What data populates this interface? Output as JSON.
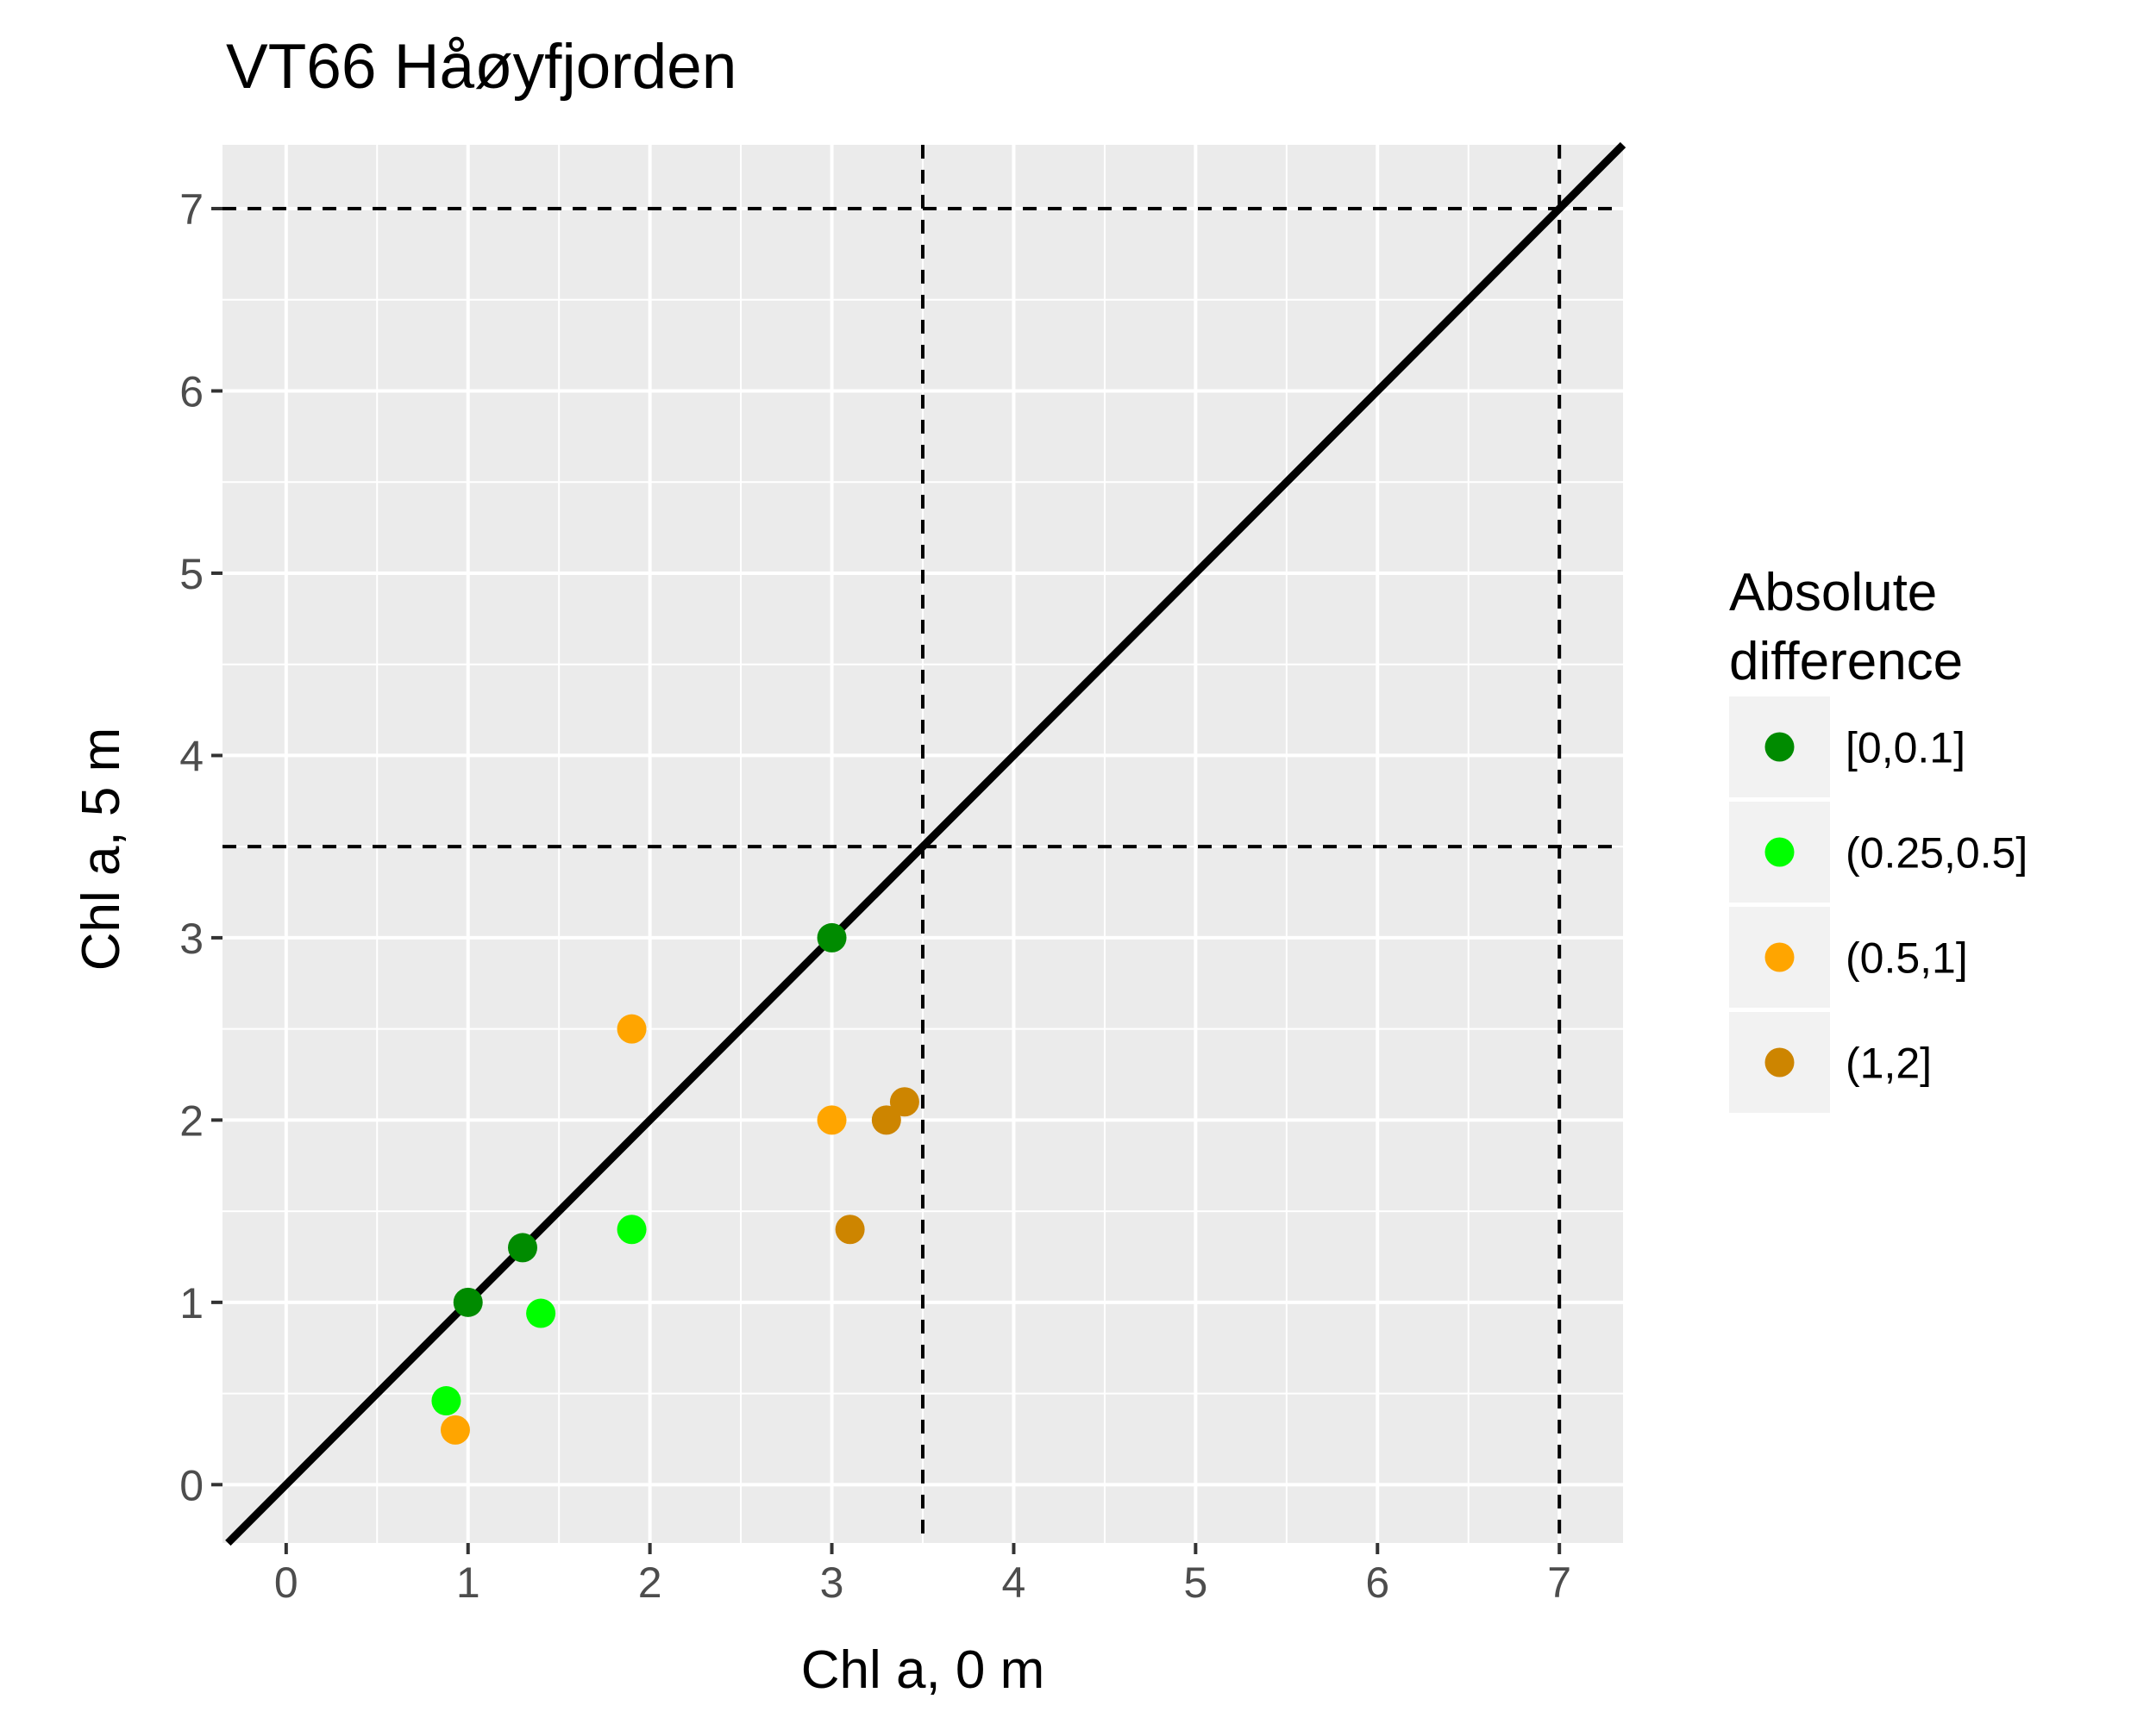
{
  "chart_data": {
    "type": "scatter",
    "title": "VT66 Håøyfjorden",
    "xlabel": "Chl a, 0 m",
    "ylabel": "Chl a, 5 m",
    "xlim": [
      -0.35,
      7.35
    ],
    "ylim": [
      -0.32,
      7.35
    ],
    "x_ticks": [
      "0",
      "1",
      "2",
      "3",
      "4",
      "5",
      "6",
      "7"
    ],
    "y_ticks": [
      "0",
      "1",
      "2",
      "3",
      "4",
      "5",
      "6",
      "7"
    ],
    "grid": true,
    "panel_background": "#ebebeb",
    "reference_lines": {
      "identity_line": "y = x",
      "vertical_dashed": [
        3.5,
        7
      ],
      "horizontal_dashed": [
        3.5,
        7
      ]
    },
    "legend": {
      "title": [
        "Absolute",
        "difference"
      ],
      "position": "right",
      "entries": [
        {
          "label": "[0,0.1]",
          "color": "#008b00"
        },
        {
          "label": "(0.25,0.5]",
          "color": "#00ff00"
        },
        {
          "label": "(0.5,1]",
          "color": "#ffa500"
        },
        {
          "label": "(1,2]",
          "color": "#cd8500"
        }
      ]
    },
    "series": [
      {
        "name": "[0,0.1]",
        "color": "#008b00",
        "points": [
          [
            1.0,
            1.0
          ],
          [
            1.3,
            1.3
          ],
          [
            3.0,
            3.0
          ]
        ]
      },
      {
        "name": "(0.25,0.5]",
        "color": "#00ff00",
        "points": [
          [
            0.88,
            0.46
          ],
          [
            1.4,
            0.94
          ],
          [
            1.9,
            1.4
          ]
        ]
      },
      {
        "name": "(0.5,1]",
        "color": "#ffa500",
        "points": [
          [
            0.93,
            0.3
          ],
          [
            1.9,
            2.5
          ],
          [
            3.0,
            2.0
          ]
        ]
      },
      {
        "name": "(1,2]",
        "color": "#cd8500",
        "points": [
          [
            3.1,
            1.4
          ],
          [
            3.3,
            2.0
          ],
          [
            3.4,
            2.1
          ]
        ]
      }
    ]
  }
}
